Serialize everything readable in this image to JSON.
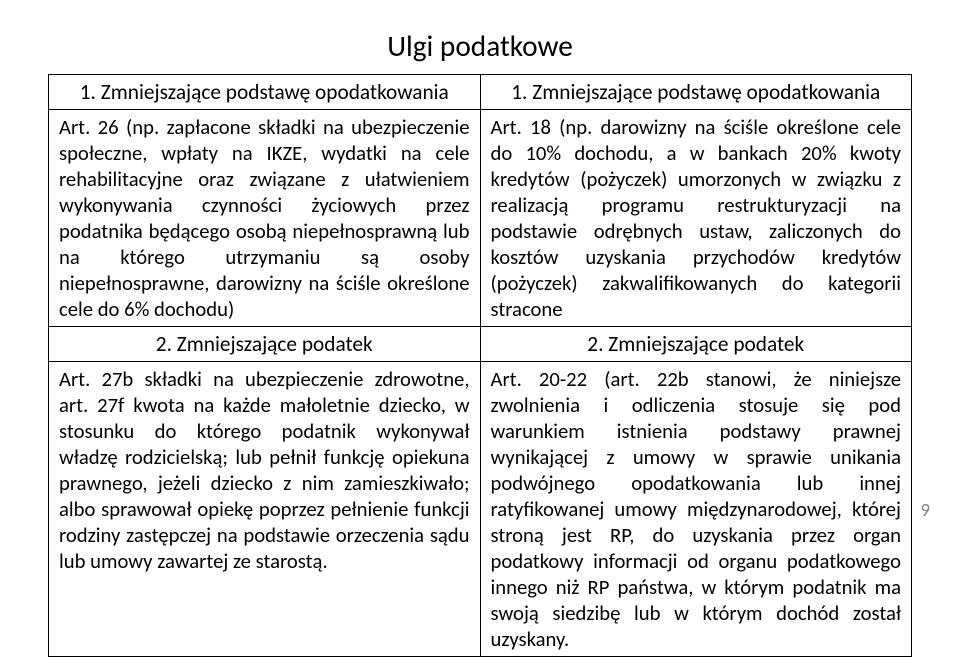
{
  "title": "Ulgi podatkowe",
  "page_number": "9",
  "fonts": {
    "title_size_pt": 22,
    "header_size_pt": 16,
    "body_size_pt": 15.5,
    "pagenum_size_pt": 14
  },
  "colors": {
    "text": "#000000",
    "border": "#000000",
    "background": "#ffffff",
    "pagenum": "#808080"
  },
  "table": {
    "type": "table",
    "columns": 2,
    "col_width_pct": [
      50,
      50
    ],
    "rows": [
      {
        "kind": "header",
        "left": "1. Zmniejszające podstawę opodatkowania",
        "right": "1. Zmniejszające podstawę opodatkowania"
      },
      {
        "kind": "body",
        "left": "Art. 26 (np. zapłacone składki na ubezpieczenie społeczne, wpłaty na IKZE, wydatki na cele rehabilitacyjne oraz związane z ułatwieniem wykonywania czynności życiowych przez podatnika będącego osobą niepełnosprawną lub na którego utrzymaniu są osoby niepełnosprawne, darowizny na ściśle określone cele do 6% dochodu)",
        "right": "Art. 18 (np. darowizny na ściśle określone cele do 10% dochodu, a w bankach 20% kwoty kredytów (pożyczek) umorzonych w związku z realizacją programu restrukturyzacji na podstawie odrębnych ustaw, zaliczonych do kosztów uzyskania przychodów kredytów (pożyczek) zakwalifikowanych do kategorii stracone"
      },
      {
        "kind": "header",
        "left": "2. Zmniejszające podatek",
        "right": "2. Zmniejszające podatek"
      },
      {
        "kind": "body",
        "left": "Art. 27b składki na ubezpieczenie zdrowotne, art. 27f kwota na każde małoletnie dziecko, w stosunku do którego podatnik wykonywał władzę rodzicielską; lub pełnił funkcję opiekuna prawnego, jeżeli dziecko z nim zamieszkiwało; albo sprawował opiekę poprzez pełnienie funkcji rodziny zastępczej na podstawie orzeczenia sądu lub umowy zawartej ze starostą.",
        "right": "Art. 20-22 (art. 22b stanowi, że niniejsze zwolnienia i odliczenia stosuje się pod warunkiem istnienia podstawy prawnej wynikającej z umowy w sprawie unikania podwójnego opodatkowania lub innej ratyfikowanej umowy międzynarodowej, której stroną jest RP, do uzyskania przez organ podatkowy informacji od organu podatkowego innego niż RP państwa, w którym podatnik ma swoją siedzibę lub w którym dochód został uzyskany."
      }
    ]
  }
}
